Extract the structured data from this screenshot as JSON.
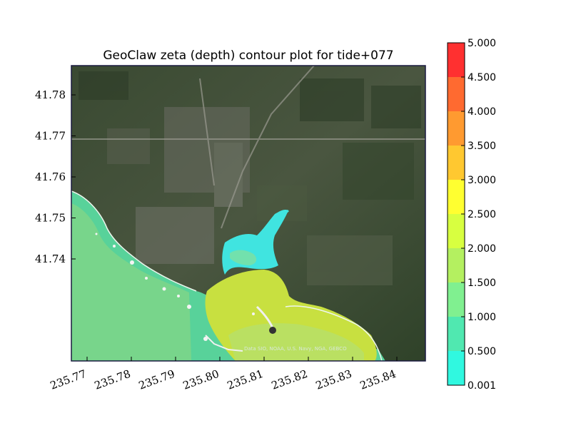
{
  "title": "GeoClaw zeta (depth) contour plot for tide+077",
  "attribution": "Data SIO, NOAA, U.S. Navy, NGA, GEBCO",
  "x_ticks": [
    "235.77",
    "235.78",
    "235.79",
    "235.80",
    "235.81",
    "235.82",
    "235.83",
    "235.84"
  ],
  "y_ticks": [
    "41.78",
    "41.77",
    "41.76",
    "41.75",
    "41.74"
  ],
  "colorbar": {
    "ticks": [
      "5.000",
      "4.500",
      "4.000",
      "3.500",
      "3.000",
      "2.500",
      "2.000",
      "1.500",
      "1.000",
      "0.500",
      "0.001"
    ],
    "band_colors": [
      "#ff3030",
      "#ff6a30",
      "#ff9a30",
      "#ffc830",
      "#ffff30",
      "#d8ff40",
      "#b4f060",
      "#80f090",
      "#50e8b0",
      "#30f8e0"
    ]
  },
  "map_colors": {
    "ocean": "#58d29a",
    "shallow": "#c8e040",
    "inundation": "#40e4e0",
    "land": "#3e4d35"
  }
}
